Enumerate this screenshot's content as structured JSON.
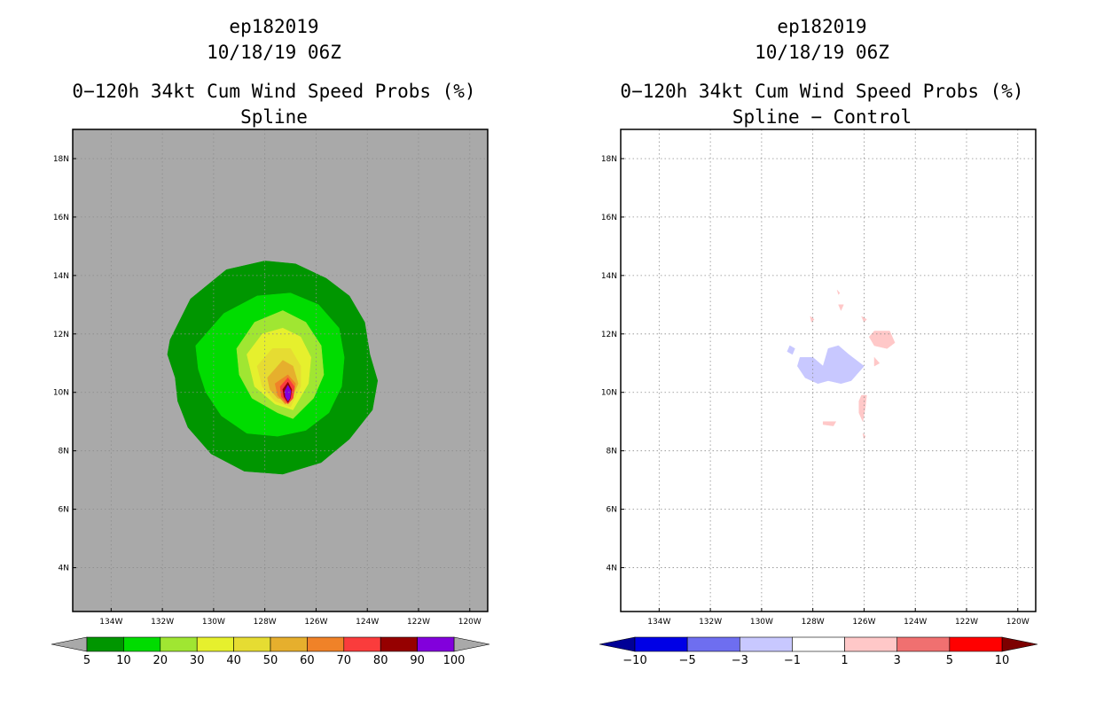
{
  "left": {
    "title_storm": "ep182019",
    "title_time": "10/18/19 06Z",
    "title_product": "0−120h 34kt Cum Wind Speed Probs (%)",
    "title_sub": "Spline"
  },
  "right": {
    "title_storm": "ep182019",
    "title_time": "10/18/19 06Z",
    "title_product": "0−120h 34kt Cum Wind Speed Probs (%)",
    "title_sub": "Spline − Control"
  },
  "chart_data": [
    {
      "type": "heatmap",
      "title": "0−120h 34kt Cum Wind Speed Probs (%) — Spline",
      "xlim": [
        -135.5,
        -119.3
      ],
      "ylim": [
        2.5,
        19.0
      ],
      "xticks": [
        -134,
        -132,
        -130,
        -128,
        -126,
        -124,
        -122,
        -120
      ],
      "xtick_labels": [
        "134W",
        "132W",
        "130W",
        "128W",
        "126W",
        "124W",
        "122W",
        "120W"
      ],
      "yticks": [
        4,
        6,
        8,
        10,
        12,
        14,
        16,
        18
      ],
      "ytick_labels": [
        "4N",
        "6N",
        "8N",
        "10N",
        "12N",
        "14N",
        "16N",
        "18N"
      ],
      "background": "#a9a9a9",
      "grid": true,
      "contours": [
        {
          "level": 5,
          "color": "#009600",
          "polygon": [
            [
              -131.7,
              11.8
            ],
            [
              -130.9,
              13.2
            ],
            [
              -129.5,
              14.2
            ],
            [
              -128.0,
              14.5
            ],
            [
              -126.8,
              14.4
            ],
            [
              -125.6,
              13.9
            ],
            [
              -124.7,
              13.3
            ],
            [
              -124.1,
              12.4
            ],
            [
              -123.9,
              11.3
            ],
            [
              -123.6,
              10.4
            ],
            [
              -123.8,
              9.4
            ],
            [
              -124.7,
              8.4
            ],
            [
              -125.8,
              7.6
            ],
            [
              -127.3,
              7.2
            ],
            [
              -128.8,
              7.3
            ],
            [
              -130.1,
              7.9
            ],
            [
              -131.0,
              8.8
            ],
            [
              -131.4,
              9.7
            ],
            [
              -131.5,
              10.5
            ],
            [
              -131.8,
              11.3
            ]
          ]
        },
        {
          "level": 10,
          "color": "#00dc00",
          "polygon": [
            [
              -130.7,
              11.6
            ],
            [
              -129.6,
              12.7
            ],
            [
              -128.3,
              13.3
            ],
            [
              -127.0,
              13.4
            ],
            [
              -125.9,
              13.0
            ],
            [
              -125.1,
              12.2
            ],
            [
              -124.9,
              11.2
            ],
            [
              -125.0,
              10.2
            ],
            [
              -125.5,
              9.3
            ],
            [
              -126.4,
              8.7
            ],
            [
              -127.5,
              8.5
            ],
            [
              -128.7,
              8.6
            ],
            [
              -129.7,
              9.2
            ],
            [
              -130.3,
              10.0
            ],
            [
              -130.6,
              10.8
            ]
          ]
        },
        {
          "level": 20,
          "color": "#a0e632",
          "polygon": [
            [
              -129.1,
              11.5
            ],
            [
              -128.4,
              12.4
            ],
            [
              -127.3,
              12.8
            ],
            [
              -126.4,
              12.4
            ],
            [
              -125.8,
              11.6
            ],
            [
              -125.7,
              10.6
            ],
            [
              -126.1,
              9.8
            ],
            [
              -126.9,
              9.1
            ],
            [
              -127.5,
              9.3
            ],
            [
              -128.5,
              9.8
            ],
            [
              -129.0,
              10.6
            ]
          ]
        },
        {
          "level": 30,
          "color": "#e6f02d",
          "polygon": [
            [
              -128.7,
              11.3
            ],
            [
              -128.1,
              12.0
            ],
            [
              -127.3,
              12.2
            ],
            [
              -126.6,
              11.9
            ],
            [
              -126.2,
              11.2
            ],
            [
              -126.3,
              10.3
            ],
            [
              -126.9,
              9.4
            ],
            [
              -127.6,
              9.6
            ],
            [
              -128.4,
              10.2
            ]
          ]
        },
        {
          "level": 40,
          "color": "#e6dc32",
          "polygon": [
            [
              -128.3,
              10.9
            ],
            [
              -127.7,
              11.5
            ],
            [
              -127.0,
              11.5
            ],
            [
              -126.6,
              10.9
            ],
            [
              -126.6,
              10.2
            ],
            [
              -127.0,
              9.5
            ],
            [
              -127.6,
              9.7
            ],
            [
              -128.1,
              10.2
            ]
          ]
        },
        {
          "level": 50,
          "color": "#e6af2d",
          "polygon": [
            [
              -127.9,
              10.5
            ],
            [
              -127.3,
              11.1
            ],
            [
              -126.9,
              10.9
            ],
            [
              -126.7,
              10.3
            ],
            [
              -127.0,
              9.7
            ],
            [
              -127.5,
              9.8
            ],
            [
              -127.8,
              10.1
            ]
          ]
        },
        {
          "level": 60,
          "color": "#f08228",
          "polygon": [
            [
              -127.6,
              10.3
            ],
            [
              -127.1,
              10.6
            ],
            [
              -126.8,
              10.3
            ],
            [
              -126.9,
              9.8
            ],
            [
              -127.2,
              9.6
            ],
            [
              -127.5,
              9.9
            ]
          ]
        },
        {
          "level": 70,
          "color": "#fa3c3c",
          "polygon": [
            [
              -127.4,
              10.2
            ],
            [
              -127.1,
              10.5
            ],
            [
              -126.85,
              10.2
            ],
            [
              -126.9,
              9.8
            ],
            [
              -127.1,
              9.6
            ],
            [
              -127.35,
              9.85
            ]
          ]
        },
        {
          "level": 80,
          "color": "#960000",
          "polygon": [
            [
              -127.3,
              10.1
            ],
            [
              -127.1,
              10.35
            ],
            [
              -126.95,
              10.1
            ],
            [
              -127.0,
              9.8
            ],
            [
              -127.1,
              9.65
            ],
            [
              -127.25,
              9.85
            ]
          ]
        },
        {
          "level": 90,
          "color": "#8200dc",
          "polygon": [
            [
              -127.22,
              10.05
            ],
            [
              -127.1,
              10.25
            ],
            [
              -126.98,
              10.05
            ],
            [
              -127.02,
              9.8
            ],
            [
              -127.1,
              9.7
            ],
            [
              -127.2,
              9.85
            ]
          ]
        }
      ],
      "colorbar": {
        "levels": [
          "5",
          "10",
          "20",
          "30",
          "40",
          "50",
          "60",
          "70",
          "80",
          "90",
          "100"
        ],
        "colors": [
          "#009600",
          "#00dc00",
          "#a0e632",
          "#e6f02d",
          "#e6dc32",
          "#e6af2d",
          "#f08228",
          "#fa3c3c",
          "#960000",
          "#8200dc"
        ],
        "under_color": "#a9a9a9",
        "over_color": "#a9a9a9"
      }
    },
    {
      "type": "heatmap",
      "title": "0−120h 34kt Cum Wind Speed Probs (%) — Spline − Control",
      "xlim": [
        -135.5,
        -119.3
      ],
      "ylim": [
        2.5,
        19.0
      ],
      "xticks": [
        -134,
        -132,
        -130,
        -128,
        -126,
        -124,
        -122,
        -120
      ],
      "xtick_labels": [
        "134W",
        "132W",
        "130W",
        "128W",
        "126W",
        "124W",
        "122W",
        "120W"
      ],
      "yticks": [
        4,
        6,
        8,
        10,
        12,
        14,
        16,
        18
      ],
      "ytick_labels": [
        "4N",
        "6N",
        "8N",
        "10N",
        "12N",
        "14N",
        "16N",
        "18N"
      ],
      "background": "#ffffff",
      "grid": true,
      "contours": [
        {
          "level": -1,
          "color": "#c8c8ff",
          "polygon": [
            [
              -128.5,
              11.2
            ],
            [
              -128.0,
              11.2
            ],
            [
              -127.6,
              10.9
            ],
            [
              -127.4,
              11.5
            ],
            [
              -127.0,
              11.6
            ],
            [
              -126.6,
              11.3
            ],
            [
              -126.0,
              10.9
            ],
            [
              -126.5,
              10.4
            ],
            [
              -126.9,
              10.3
            ],
            [
              -127.4,
              10.4
            ],
            [
              -127.8,
              10.3
            ],
            [
              -128.3,
              10.5
            ],
            [
              -128.6,
              10.9
            ]
          ]
        },
        {
          "level": -1,
          "color": "#c8c8ff",
          "polygon": [
            [
              -128.9,
              11.6
            ],
            [
              -128.7,
              11.5
            ],
            [
              -128.8,
              11.3
            ],
            [
              -129.0,
              11.4
            ]
          ]
        },
        {
          "level": 1,
          "color": "#ffc8c8",
          "polygon": [
            [
              -125.6,
              12.1
            ],
            [
              -125.0,
              12.1
            ],
            [
              -124.8,
              11.7
            ],
            [
              -125.1,
              11.5
            ],
            [
              -125.6,
              11.6
            ],
            [
              -125.8,
              11.9
            ]
          ]
        },
        {
          "level": 1,
          "color": "#ffc8c8",
          "polygon": [
            [
              -126.1,
              9.9
            ],
            [
              -125.9,
              9.9
            ],
            [
              -125.95,
              9.5
            ],
            [
              -126.05,
              9.0
            ],
            [
              -126.2,
              9.3
            ],
            [
              -126.2,
              9.7
            ]
          ]
        },
        {
          "level": 1,
          "color": "#ffc8c8",
          "polygon": [
            [
              -127.0,
              13.0
            ],
            [
              -126.8,
              13.0
            ],
            [
              -126.9,
              12.8
            ]
          ]
        },
        {
          "level": 1,
          "color": "#ffc8c8",
          "polygon": [
            [
              -126.1,
              12.6
            ],
            [
              -125.9,
              12.5
            ],
            [
              -126.0,
              12.4
            ]
          ]
        },
        {
          "level": 1,
          "color": "#ffc8c8",
          "polygon": [
            [
              -128.1,
              12.6
            ],
            [
              -127.95,
              12.5
            ],
            [
              -128.05,
              12.4
            ]
          ]
        },
        {
          "level": 1,
          "color": "#ffc8c8",
          "polygon": [
            [
              -125.6,
              11.2
            ],
            [
              -125.4,
              11.0
            ],
            [
              -125.6,
              10.9
            ]
          ]
        },
        {
          "level": 1,
          "color": "#ffc8c8",
          "polygon": [
            [
              -127.6,
              9.0
            ],
            [
              -127.1,
              9.0
            ],
            [
              -127.2,
              8.85
            ],
            [
              -127.6,
              8.9
            ]
          ]
        },
        {
          "level": 1,
          "color": "#ffc8c8",
          "polygon": [
            [
              -126.05,
              8.6
            ],
            [
              -125.95,
              8.5
            ],
            [
              -126.0,
              8.4
            ]
          ]
        },
        {
          "level": 1,
          "color": "#ffc8c8",
          "polygon": [
            [
              -127.05,
              13.5
            ],
            [
              -126.95,
              13.4
            ],
            [
              -127.0,
              13.35
            ]
          ]
        }
      ],
      "colorbar": {
        "levels": [
          "−10",
          "−5",
          "−3",
          "−1",
          "1",
          "3",
          "5",
          "10"
        ],
        "colors": [
          "#0000e6",
          "#6e6ef0",
          "#c8c8ff",
          "#ffffff",
          "#ffc8c8",
          "#f07070",
          "#ff0000"
        ],
        "under_color": "#000096",
        "over_color": "#7d0000"
      }
    }
  ]
}
